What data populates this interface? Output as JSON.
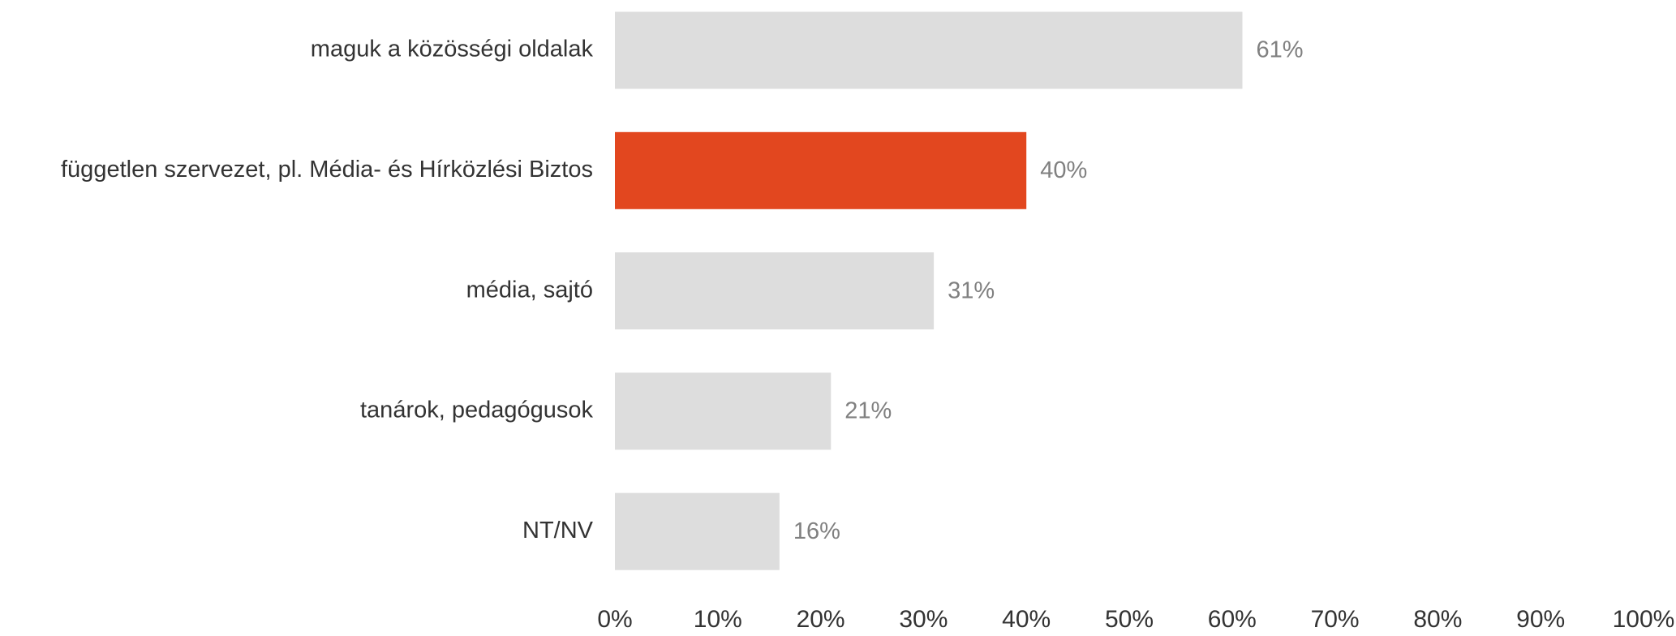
{
  "chart_data": {
    "type": "hbar",
    "categories": [
      "maguk a közösségi oldalak",
      "független szervezet, pl. Média- és Hírközlési Biztos",
      "média, sajtó",
      "tanárok, pedagógusok",
      "NT/NV"
    ],
    "values": [
      61,
      40,
      31,
      21,
      16
    ],
    "value_labels": [
      "61%",
      "40%",
      "31%",
      "21%",
      "16%"
    ],
    "colors": [
      "#dddddd",
      "#e2471f",
      "#dddddd",
      "#dddddd",
      "#dddddd"
    ],
    "xlim": [
      0,
      100
    ],
    "xticks": [
      {
        "value": 0,
        "label": "0%"
      },
      {
        "value": 10,
        "label": "10%"
      },
      {
        "value": 20,
        "label": "20%"
      },
      {
        "value": 30,
        "label": "30%"
      },
      {
        "value": 40,
        "label": "40%"
      },
      {
        "value": 50,
        "label": "50%"
      },
      {
        "value": 60,
        "label": "60%"
      },
      {
        "value": 70,
        "label": "70%"
      },
      {
        "value": 80,
        "label": "80%"
      },
      {
        "value": 90,
        "label": "90%"
      },
      {
        "value": 100,
        "label": "100%"
      }
    ],
    "grid": false
  }
}
